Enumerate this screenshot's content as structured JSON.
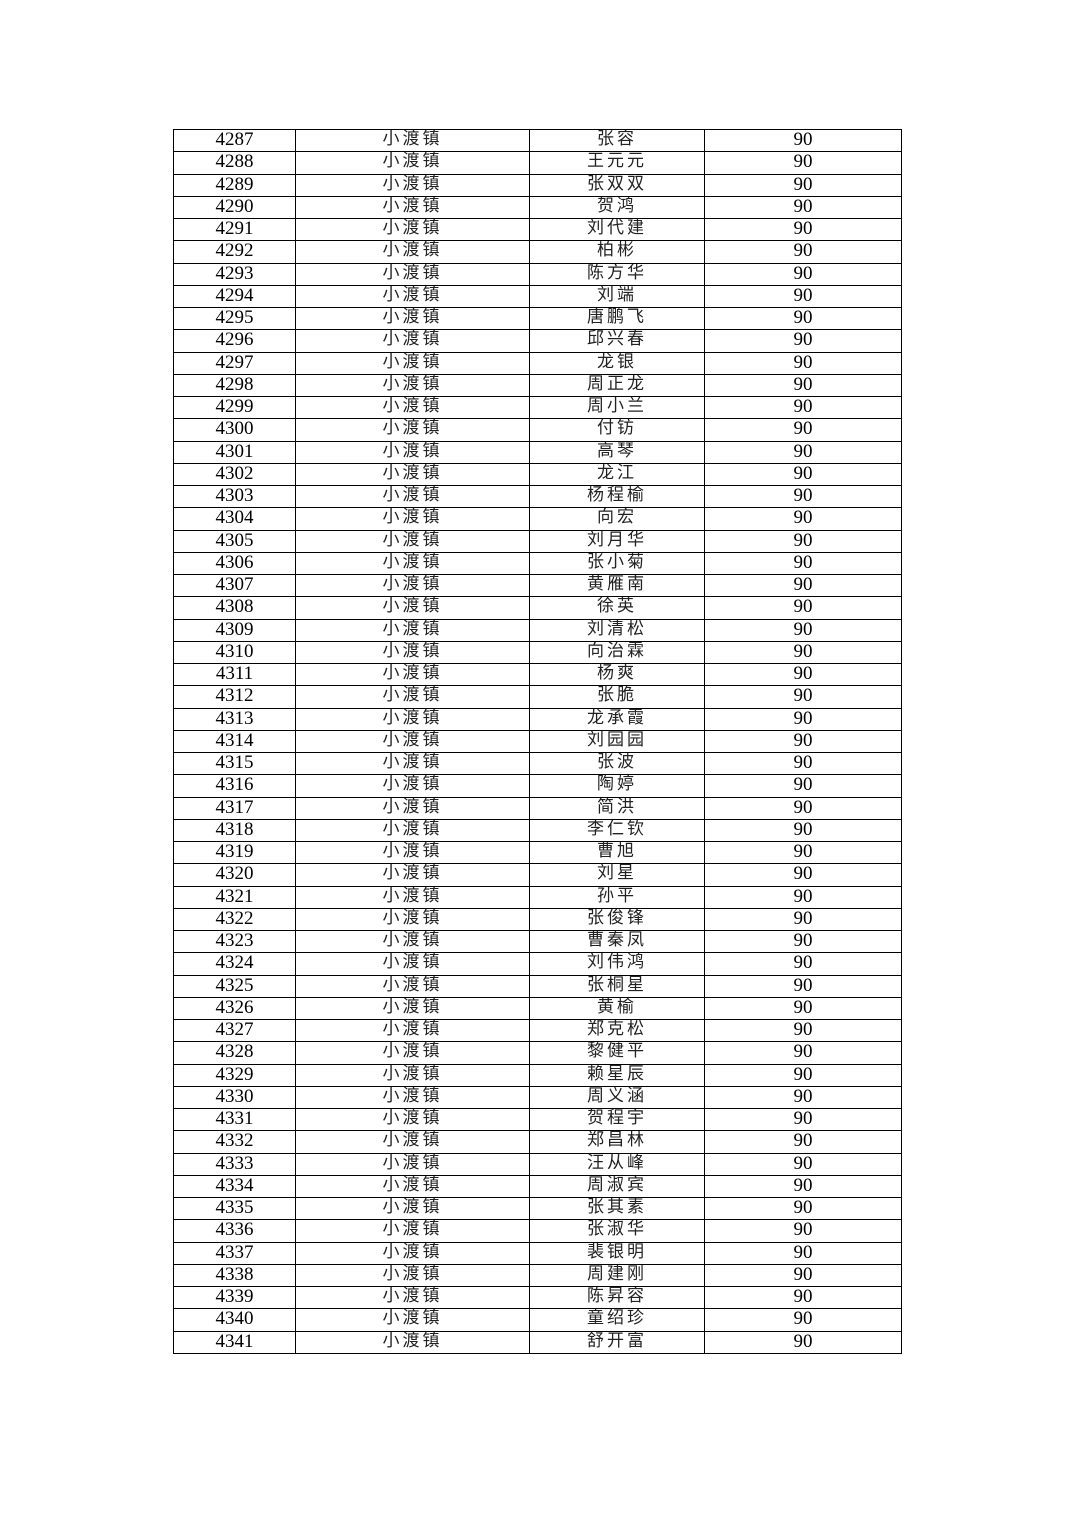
{
  "table": {
    "rows": [
      [
        "4287",
        "小渡镇",
        "张容",
        "90"
      ],
      [
        "4288",
        "小渡镇",
        "王元元",
        "90"
      ],
      [
        "4289",
        "小渡镇",
        "张双双",
        "90"
      ],
      [
        "4290",
        "小渡镇",
        "贺鸿",
        "90"
      ],
      [
        "4291",
        "小渡镇",
        "刘代建",
        "90"
      ],
      [
        "4292",
        "小渡镇",
        "柏彬",
        "90"
      ],
      [
        "4293",
        "小渡镇",
        "陈方华",
        "90"
      ],
      [
        "4294",
        "小渡镇",
        "刘端",
        "90"
      ],
      [
        "4295",
        "小渡镇",
        "唐鹏飞",
        "90"
      ],
      [
        "4296",
        "小渡镇",
        "邱兴春",
        "90"
      ],
      [
        "4297",
        "小渡镇",
        "龙银",
        "90"
      ],
      [
        "4298",
        "小渡镇",
        "周正龙",
        "90"
      ],
      [
        "4299",
        "小渡镇",
        "周小兰",
        "90"
      ],
      [
        "4300",
        "小渡镇",
        "付钫",
        "90"
      ],
      [
        "4301",
        "小渡镇",
        "高琴",
        "90"
      ],
      [
        "4302",
        "小渡镇",
        "龙江",
        "90"
      ],
      [
        "4303",
        "小渡镇",
        "杨程榆",
        "90"
      ],
      [
        "4304",
        "小渡镇",
        "向宏",
        "90"
      ],
      [
        "4305",
        "小渡镇",
        "刘月华",
        "90"
      ],
      [
        "4306",
        "小渡镇",
        "张小菊",
        "90"
      ],
      [
        "4307",
        "小渡镇",
        "黄雁南",
        "90"
      ],
      [
        "4308",
        "小渡镇",
        "徐英",
        "90"
      ],
      [
        "4309",
        "小渡镇",
        "刘清松",
        "90"
      ],
      [
        "4310",
        "小渡镇",
        "向治霖",
        "90"
      ],
      [
        "4311",
        "小渡镇",
        "杨爽",
        "90"
      ],
      [
        "4312",
        "小渡镇",
        "张脆",
        "90"
      ],
      [
        "4313",
        "小渡镇",
        "龙承霞",
        "90"
      ],
      [
        "4314",
        "小渡镇",
        "刘园园",
        "90"
      ],
      [
        "4315",
        "小渡镇",
        "张波",
        "90"
      ],
      [
        "4316",
        "小渡镇",
        "陶婷",
        "90"
      ],
      [
        "4317",
        "小渡镇",
        "简洪",
        "90"
      ],
      [
        "4318",
        "小渡镇",
        "李仁钦",
        "90"
      ],
      [
        "4319",
        "小渡镇",
        "曹旭",
        "90"
      ],
      [
        "4320",
        "小渡镇",
        "刘星",
        "90"
      ],
      [
        "4321",
        "小渡镇",
        "孙平",
        "90"
      ],
      [
        "4322",
        "小渡镇",
        "张俊锋",
        "90"
      ],
      [
        "4323",
        "小渡镇",
        "曹秦凤",
        "90"
      ],
      [
        "4324",
        "小渡镇",
        "刘伟鸿",
        "90"
      ],
      [
        "4325",
        "小渡镇",
        "张桐星",
        "90"
      ],
      [
        "4326",
        "小渡镇",
        "黄榆",
        "90"
      ],
      [
        "4327",
        "小渡镇",
        "郑克松",
        "90"
      ],
      [
        "4328",
        "小渡镇",
        "黎健平",
        "90"
      ],
      [
        "4329",
        "小渡镇",
        "赖星辰",
        "90"
      ],
      [
        "4330",
        "小渡镇",
        "周义涵",
        "90"
      ],
      [
        "4331",
        "小渡镇",
        "贺程宇",
        "90"
      ],
      [
        "4332",
        "小渡镇",
        "郑昌林",
        "90"
      ],
      [
        "4333",
        "小渡镇",
        "汪从峰",
        "90"
      ],
      [
        "4334",
        "小渡镇",
        "周淑宾",
        "90"
      ],
      [
        "4335",
        "小渡镇",
        "张其素",
        "90"
      ],
      [
        "4336",
        "小渡镇",
        "张淑华",
        "90"
      ],
      [
        "4337",
        "小渡镇",
        "裴银明",
        "90"
      ],
      [
        "4338",
        "小渡镇",
        "周建刚",
        "90"
      ],
      [
        "4339",
        "小渡镇",
        "陈昇容",
        "90"
      ],
      [
        "4340",
        "小渡镇",
        "童绍珍",
        "90"
      ],
      [
        "4341",
        "小渡镇",
        "舒开富",
        "90"
      ]
    ]
  }
}
